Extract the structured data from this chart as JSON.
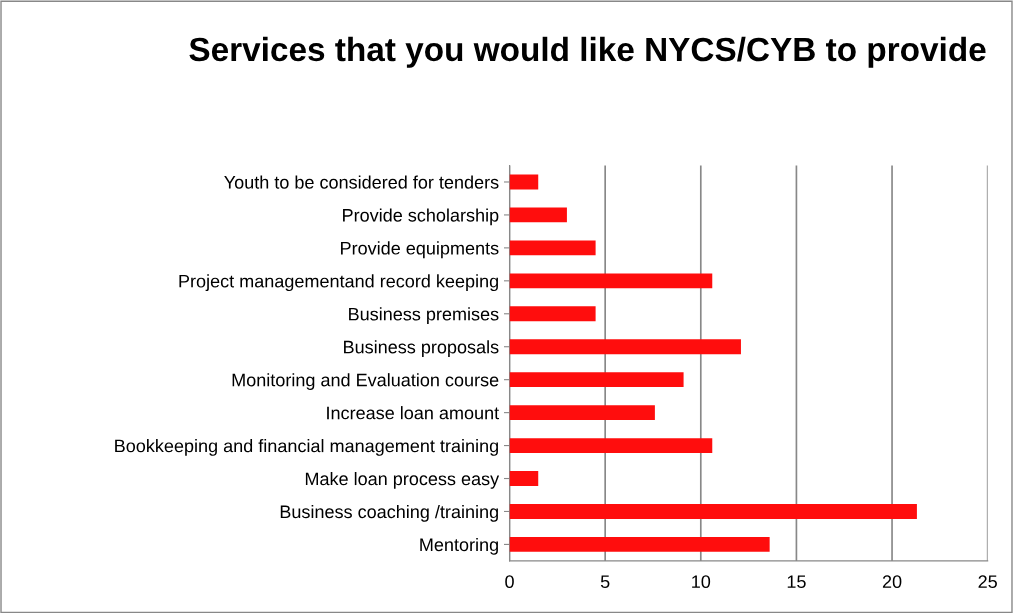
{
  "chart_data": {
    "type": "bar",
    "orientation": "horizontal",
    "title": "Services that you would like NYCS/CYB to provide",
    "categories": [
      "Youth to be considered for tenders",
      "Provide scholarship",
      "Provide equipments",
      "Project managementand record keeping",
      "Business premises",
      "Business proposals",
      "Monitoring and Evaluation course",
      "Increase loan amount",
      "Bookkeeping and financial management training",
      "Make loan process easy",
      "Business coaching /training",
      "Mentoring"
    ],
    "values": [
      1.5,
      3.0,
      4.5,
      10.6,
      4.5,
      12.1,
      9.1,
      7.6,
      10.6,
      1.5,
      21.3,
      13.6
    ],
    "color": "#ff0d0d",
    "xlim": [
      0,
      25
    ],
    "xticks": [
      0,
      5,
      10,
      15,
      20,
      25
    ],
    "grid": "x"
  }
}
